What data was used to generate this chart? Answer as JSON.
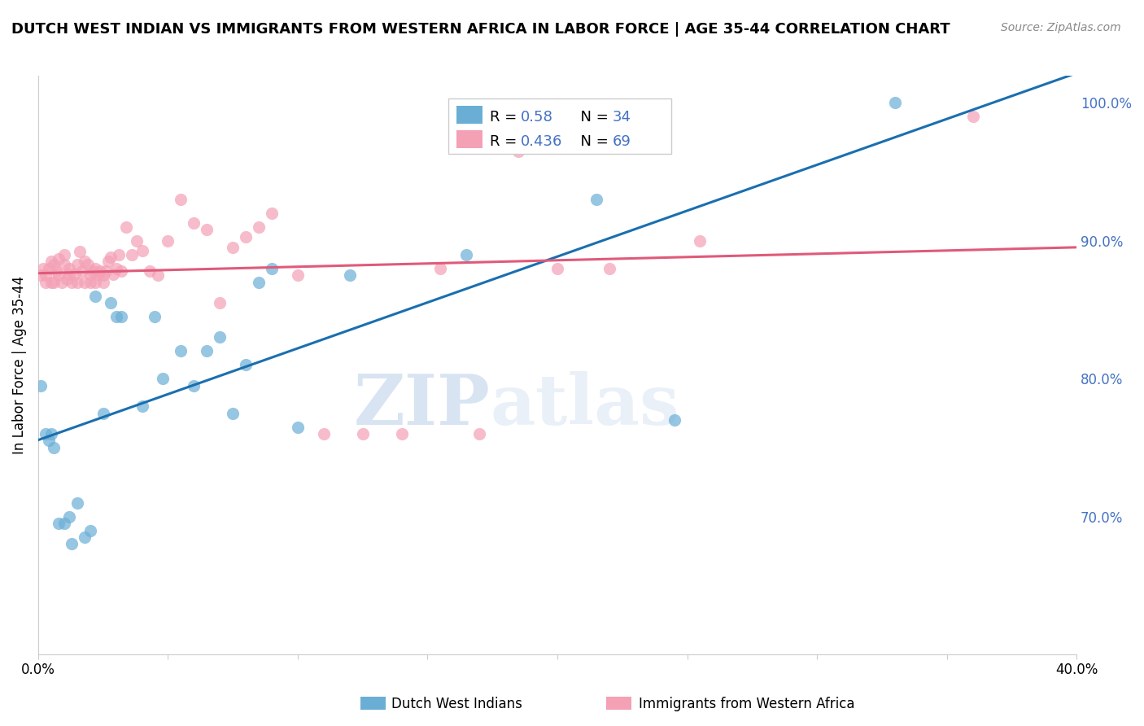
{
  "title": "DUTCH WEST INDIAN VS IMMIGRANTS FROM WESTERN AFRICA IN LABOR FORCE | AGE 35-44 CORRELATION CHART",
  "source_text": "Source: ZipAtlas.com",
  "ylabel": "In Labor Force | Age 35-44",
  "blue_label": "Dutch West Indians",
  "pink_label": "Immigrants from Western Africa",
  "blue_R": 0.58,
  "blue_N": 34,
  "pink_R": 0.436,
  "pink_N": 69,
  "xmin": 0.0,
  "xmax": 0.4,
  "ymin": 0.6,
  "ymax": 1.02,
  "yticks": [
    0.7,
    0.8,
    0.9,
    1.0
  ],
  "ytick_labels": [
    "70.0%",
    "80.0%",
    "90.0%",
    "100.0%"
  ],
  "xticks": [
    0.0,
    0.05,
    0.1,
    0.15,
    0.2,
    0.25,
    0.3,
    0.35,
    0.4
  ],
  "blue_color": "#6aaed6",
  "pink_color": "#f4a0b5",
  "blue_line_color": "#1a6faf",
  "pink_line_color": "#e05a7a",
  "blue_scatter_x": [
    0.001,
    0.003,
    0.004,
    0.005,
    0.006,
    0.008,
    0.01,
    0.012,
    0.013,
    0.015,
    0.018,
    0.02,
    0.022,
    0.025,
    0.028,
    0.03,
    0.032,
    0.04,
    0.045,
    0.048,
    0.055,
    0.06,
    0.065,
    0.07,
    0.075,
    0.08,
    0.085,
    0.09,
    0.1,
    0.12,
    0.165,
    0.215,
    0.245,
    0.33
  ],
  "blue_scatter_y": [
    0.795,
    0.76,
    0.755,
    0.76,
    0.75,
    0.695,
    0.695,
    0.7,
    0.68,
    0.71,
    0.685,
    0.69,
    0.86,
    0.775,
    0.855,
    0.845,
    0.845,
    0.78,
    0.845,
    0.8,
    0.82,
    0.795,
    0.82,
    0.83,
    0.775,
    0.81,
    0.87,
    0.88,
    0.765,
    0.875,
    0.89,
    0.93,
    0.77,
    1.0
  ],
  "pink_scatter_x": [
    0.001,
    0.002,
    0.003,
    0.003,
    0.004,
    0.005,
    0.005,
    0.006,
    0.006,
    0.007,
    0.008,
    0.008,
    0.009,
    0.01,
    0.01,
    0.011,
    0.012,
    0.012,
    0.013,
    0.014,
    0.015,
    0.015,
    0.016,
    0.017,
    0.018,
    0.018,
    0.019,
    0.02,
    0.02,
    0.021,
    0.022,
    0.022,
    0.023,
    0.024,
    0.025,
    0.025,
    0.026,
    0.027,
    0.028,
    0.029,
    0.03,
    0.031,
    0.032,
    0.034,
    0.036,
    0.038,
    0.04,
    0.043,
    0.046,
    0.05,
    0.055,
    0.06,
    0.065,
    0.07,
    0.075,
    0.08,
    0.085,
    0.09,
    0.1,
    0.11,
    0.125,
    0.14,
    0.155,
    0.17,
    0.185,
    0.2,
    0.22,
    0.255,
    0.36
  ],
  "pink_scatter_y": [
    0.875,
    0.88,
    0.875,
    0.87,
    0.88,
    0.885,
    0.87,
    0.883,
    0.87,
    0.878,
    0.875,
    0.887,
    0.87,
    0.883,
    0.89,
    0.872,
    0.88,
    0.876,
    0.87,
    0.876,
    0.883,
    0.87,
    0.892,
    0.878,
    0.885,
    0.87,
    0.883,
    0.876,
    0.87,
    0.878,
    0.88,
    0.87,
    0.876,
    0.878,
    0.875,
    0.87,
    0.878,
    0.885,
    0.888,
    0.876,
    0.88,
    0.89,
    0.878,
    0.91,
    0.89,
    0.9,
    0.893,
    0.878,
    0.875,
    0.9,
    0.93,
    0.913,
    0.908,
    0.855,
    0.895,
    0.903,
    0.91,
    0.92,
    0.875,
    0.76,
    0.76,
    0.76,
    0.88,
    0.76,
    0.965,
    0.88,
    0.88,
    0.9,
    0.99
  ],
  "watermark_zip": "ZIP",
  "watermark_atlas": "atlas",
  "grid_color": "#dddddd"
}
